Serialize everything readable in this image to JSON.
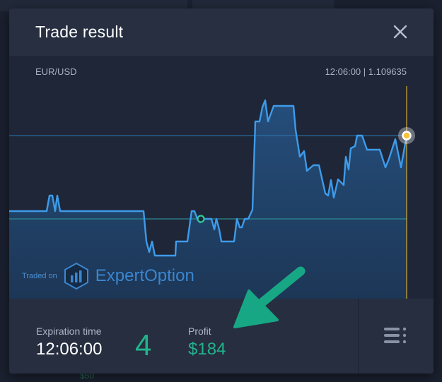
{
  "modal": {
    "title": "Trade result",
    "close_icon": "close-icon"
  },
  "chart": {
    "pair": "EUR/USD",
    "time_price": "12:06:00 | 1.109635",
    "line_color": "#3d9bea",
    "marker_color": "#f6c23c",
    "entry_marker_color": "#2fc99a"
  },
  "brand": {
    "traded_on": "Traded on",
    "name": "ExpertOption"
  },
  "footer": {
    "expiration_label": "Expiration time",
    "expiration_value": "12:06:00",
    "count": "4",
    "profit_label": "Profit",
    "profit_value": "$184",
    "menu_icon": "list-menu-icon"
  },
  "background": {
    "peek_value": "$50"
  },
  "colors": {
    "profit": "#22b38a",
    "annotation_arrow": "#17a784"
  }
}
